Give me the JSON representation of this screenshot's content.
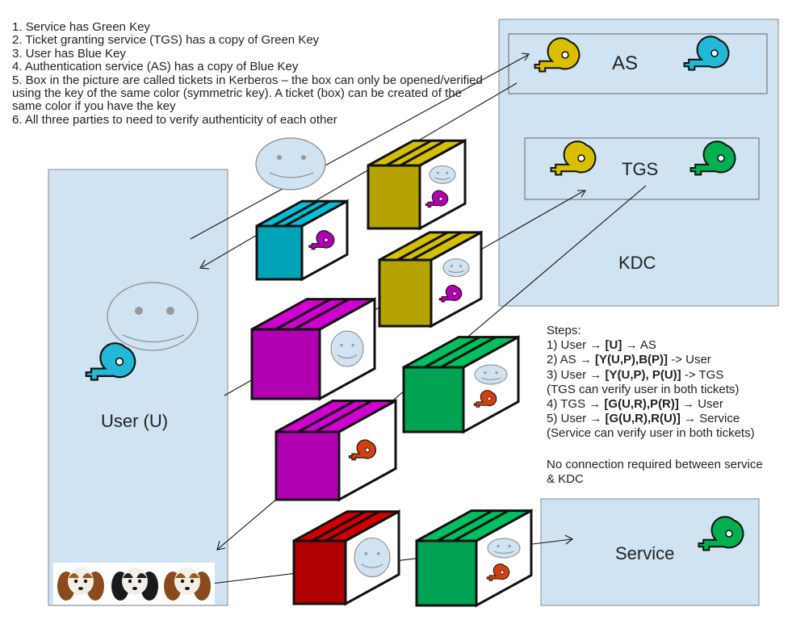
{
  "notes": [
    "1. Service has Green Key",
    "2. Ticket granting service (TGS) has a copy of Green Key",
    "3. User has Blue Key",
    "4. Authentication service (AS) has a copy of Blue Key",
    "5. Box in the picture are called tickets in Kerberos – the box can only be opened/verified using the key of the same color (symmetric key). A ticket (box) can be created of the same color if you have the key",
    "6. All three parties to need to verify authenticity of each other"
  ],
  "labels": {
    "as": "AS",
    "tgs": "TGS",
    "kdc": "KDC",
    "user": "User (U)",
    "service": "Service"
  },
  "steps": {
    "title": "Steps:",
    "lines": [
      {
        "pre": "1) User → ",
        "bold": "[U]",
        "post": " → AS"
      },
      {
        "pre": "2) AS → ",
        "bold": "[Y(U,P),B(P)]",
        "post": " -> User"
      },
      {
        "pre": "3) User → ",
        "bold": "[Y(U,P), P(U)]",
        "post": " -> TGS"
      },
      {
        "pre": "(TGS can verify user in both tickets)",
        "bold": "",
        "post": ""
      },
      {
        "pre": "4) TGS → ",
        "bold": "[G(U,R),P(R)]",
        "post": " → User"
      },
      {
        "pre": "5) User → ",
        "bold": "[G(U,R),R(U)]",
        "post": " → Service"
      },
      {
        "pre": "(Service can verify user in both tickets)",
        "bold": "",
        "post": ""
      }
    ],
    "footer": "No connection required between service & KDC"
  },
  "colors": {
    "panel": "#cfe3f2",
    "blue_key": "#22b8d6",
    "gold_key": "#d8c000",
    "green_key": "#00b050",
    "magenta_key": "#b000b0",
    "orange_key": "#d04010",
    "box_gold": "#d4c000",
    "box_cyan": "#00c0d8",
    "box_magenta": "#d000d0",
    "box_green": "#00c060",
    "box_red": "#d00000"
  }
}
